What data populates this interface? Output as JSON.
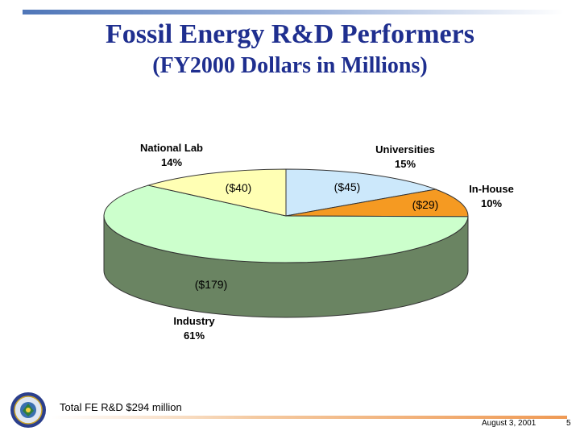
{
  "slide": {
    "title": "Fossil Energy R&D Performers",
    "subtitle": "(FY2000 Dollars in Millions)",
    "total_note": "Total FE R&D $294 million",
    "date": "August 3, 2001",
    "page_number": "5"
  },
  "chart_data": {
    "type": "pie",
    "style": "3d",
    "slices": [
      {
        "name": "Universities",
        "percent_label": "15%",
        "value": 45,
        "value_label": "($45)",
        "color": "#cce8fb"
      },
      {
        "name": "In-House",
        "percent_label": "10%",
        "value": 29,
        "value_label": "($29)",
        "color": "#f59a22"
      },
      {
        "name": "Industry",
        "percent_label": "61%",
        "value": 179,
        "value_label": "($179)",
        "color": "#ccffcc"
      },
      {
        "name": "National Lab",
        "percent_label": "14%",
        "value": 40,
        "value_label": "($40)",
        "color": "#ffffb4"
      }
    ],
    "side_color": "#6a8462",
    "outline_color": "#333333"
  },
  "colors": {
    "title": "#1f2f8f",
    "top_bar": "#4f76b8",
    "bottom_bar": "#ef9a55"
  },
  "icons": {
    "seal": "doe-seal-icon"
  }
}
